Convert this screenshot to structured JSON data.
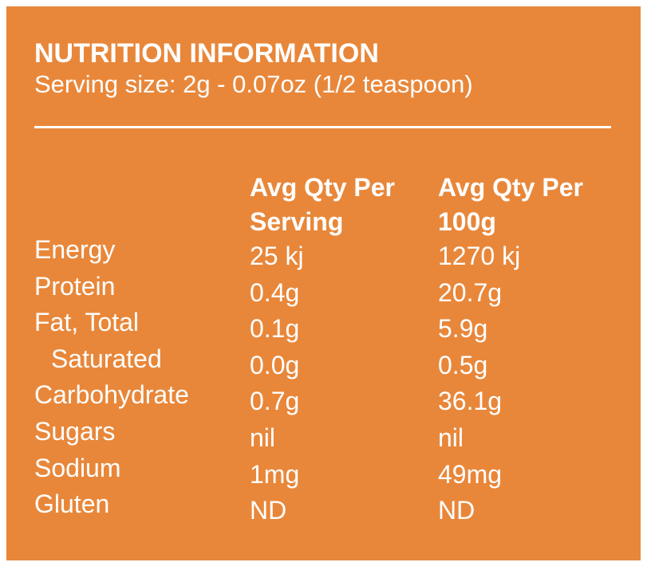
{
  "header": {
    "title": "NUTRITION INFORMATION",
    "subtitle": "Serving size: 2g - 0.07oz (1/2 teaspoon)"
  },
  "table": {
    "columns": [
      "Avg Qty Per Serving",
      "Avg Qty Per 100g"
    ],
    "rows": [
      [
        "Energy",
        "25 kj",
        "1270 kj"
      ],
      [
        "Protein",
        "0.4g",
        "20.7g"
      ],
      [
        "Fat, Total",
        "0.1g",
        "5.9g"
      ],
      [
        "Saturated",
        "0.0g",
        "0.5g"
      ],
      [
        "Carbohydrate",
        "0.7g",
        "36.1g"
      ],
      [
        "Sugars",
        "nil",
        "nil"
      ],
      [
        "Sodium",
        "1mg",
        "49mg"
      ],
      [
        "Gluten",
        "ND",
        "ND"
      ]
    ]
  }
}
